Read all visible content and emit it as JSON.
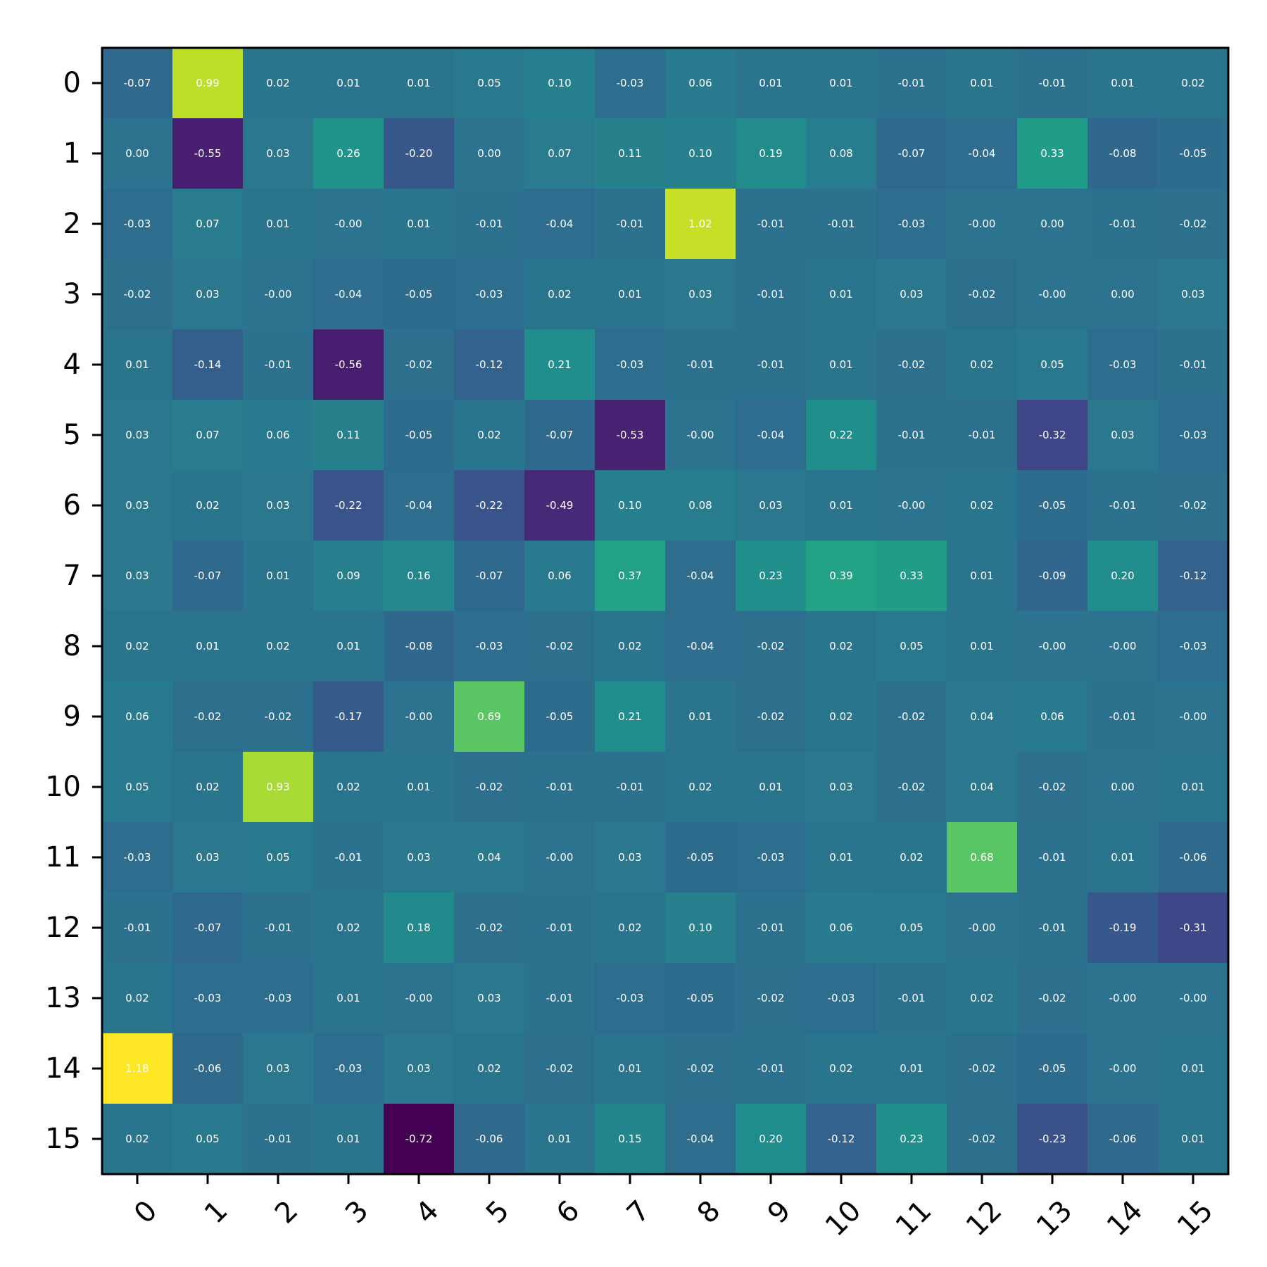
{
  "chart_data": {
    "type": "heatmap",
    "title": "",
    "xlabel": "",
    "ylabel": "",
    "colormap": "viridis",
    "vmin": -0.72,
    "vmax": 1.18,
    "x_tick_labels": [
      "0",
      "1",
      "2",
      "3",
      "4",
      "5",
      "6",
      "7",
      "8",
      "9",
      "10",
      "11",
      "12",
      "13",
      "14",
      "15"
    ],
    "y_tick_labels": [
      "0",
      "1",
      "2",
      "3",
      "4",
      "5",
      "6",
      "7",
      "8",
      "9",
      "10",
      "11",
      "12",
      "13",
      "14",
      "15"
    ],
    "grid": false,
    "values": [
      [
        "-0.07",
        "0.99",
        "0.02",
        "0.01",
        "0.01",
        "0.05",
        "0.10",
        "-0.03",
        "0.06",
        "0.01",
        "0.01",
        "-0.01",
        "0.01",
        "-0.01",
        "0.01",
        "0.02"
      ],
      [
        "0.00",
        "-0.55",
        "0.03",
        "0.26",
        "-0.20",
        "0.00",
        "0.07",
        "0.11",
        "0.10",
        "0.19",
        "0.08",
        "-0.07",
        "-0.04",
        "0.33",
        "-0.08",
        "-0.05"
      ],
      [
        "-0.03",
        "0.07",
        "0.01",
        "-0.00",
        "0.01",
        "-0.01",
        "-0.04",
        "-0.01",
        "1.02",
        "-0.01",
        "-0.01",
        "-0.03",
        "-0.00",
        "0.00",
        "-0.01",
        "-0.02"
      ],
      [
        "-0.02",
        "0.03",
        "-0.00",
        "-0.04",
        "-0.05",
        "-0.03",
        "0.02",
        "0.01",
        "0.03",
        "-0.01",
        "0.01",
        "0.03",
        "-0.02",
        "-0.00",
        "0.00",
        "0.03"
      ],
      [
        "0.01",
        "-0.14",
        "-0.01",
        "-0.56",
        "-0.02",
        "-0.12",
        "0.21",
        "-0.03",
        "-0.01",
        "-0.01",
        "0.01",
        "-0.02",
        "0.02",
        "0.05",
        "-0.03",
        "-0.01"
      ],
      [
        "0.03",
        "0.07",
        "0.06",
        "0.11",
        "-0.05",
        "0.02",
        "-0.07",
        "-0.53",
        "-0.00",
        "-0.04",
        "0.22",
        "-0.01",
        "-0.01",
        "-0.32",
        "0.03",
        "-0.03"
      ],
      [
        "0.03",
        "0.02",
        "0.03",
        "-0.22",
        "-0.04",
        "-0.22",
        "-0.49",
        "0.10",
        "0.08",
        "0.03",
        "0.01",
        "-0.00",
        "0.02",
        "-0.05",
        "-0.01",
        "-0.02"
      ],
      [
        "0.03",
        "-0.07",
        "0.01",
        "0.09",
        "0.16",
        "-0.07",
        "0.06",
        "0.37",
        "-0.04",
        "0.23",
        "0.39",
        "0.33",
        "0.01",
        "-0.09",
        "0.20",
        "-0.12"
      ],
      [
        "0.02",
        "0.01",
        "0.02",
        "0.01",
        "-0.08",
        "-0.03",
        "-0.02",
        "0.02",
        "-0.04",
        "-0.02",
        "0.02",
        "0.05",
        "0.01",
        "-0.00",
        "-0.00",
        "-0.03"
      ],
      [
        "0.06",
        "-0.02",
        "-0.02",
        "-0.17",
        "-0.00",
        "0.69",
        "-0.05",
        "0.21",
        "0.01",
        "-0.02",
        "0.02",
        "-0.02",
        "0.04",
        "0.06",
        "-0.01",
        "-0.00"
      ],
      [
        "0.05",
        "0.02",
        "0.93",
        "0.02",
        "0.01",
        "-0.02",
        "-0.01",
        "-0.01",
        "0.02",
        "0.01",
        "0.03",
        "-0.02",
        "0.04",
        "-0.02",
        "0.00",
        "0.01"
      ],
      [
        "-0.03",
        "0.03",
        "0.05",
        "-0.01",
        "0.03",
        "0.04",
        "-0.00",
        "0.03",
        "-0.05",
        "-0.03",
        "0.01",
        "0.02",
        "0.68",
        "-0.01",
        "0.01",
        "-0.06"
      ],
      [
        "-0.01",
        "-0.07",
        "-0.01",
        "0.02",
        "0.18",
        "-0.02",
        "-0.01",
        "0.02",
        "0.10",
        "-0.01",
        "0.06",
        "0.05",
        "-0.00",
        "-0.01",
        "-0.19",
        "-0.31"
      ],
      [
        "0.02",
        "-0.03",
        "-0.03",
        "0.01",
        "-0.00",
        "0.03",
        "-0.01",
        "-0.03",
        "-0.05",
        "-0.02",
        "-0.03",
        "-0.01",
        "0.02",
        "-0.02",
        "-0.00",
        "-0.00"
      ],
      [
        "1.18",
        "-0.06",
        "0.03",
        "-0.03",
        "0.03",
        "0.02",
        "-0.02",
        "0.01",
        "-0.02",
        "-0.01",
        "0.02",
        "0.01",
        "-0.02",
        "-0.05",
        "-0.00",
        "0.01"
      ],
      [
        "0.02",
        "0.05",
        "-0.01",
        "0.01",
        "-0.72",
        "-0.06",
        "0.01",
        "0.15",
        "-0.04",
        "0.20",
        "-0.12",
        "0.23",
        "-0.02",
        "-0.23",
        "-0.06",
        "0.01"
      ]
    ]
  }
}
